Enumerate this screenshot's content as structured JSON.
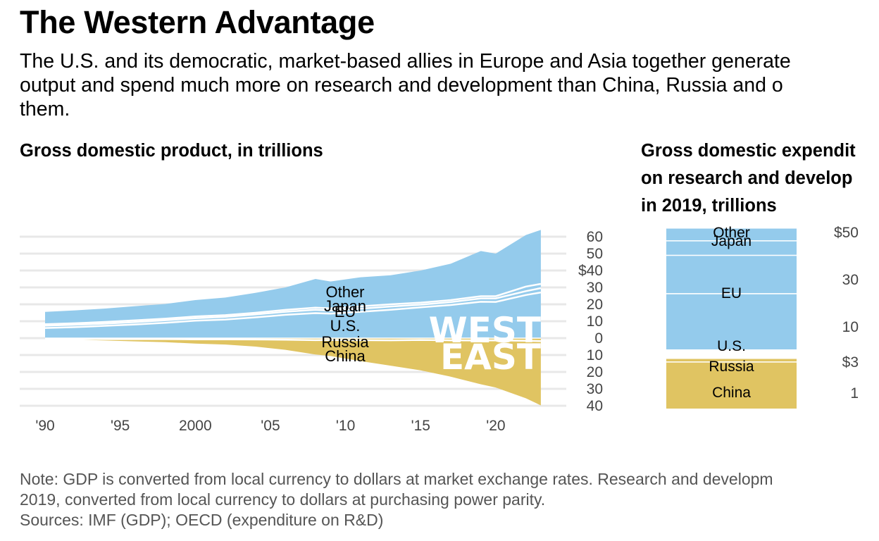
{
  "header": {
    "title": "The Western Advantage",
    "subtitle": "The U.S. and its democratic, market-based allies in Europe and Asia together generate\noutput and spend much more on research and development than China, Russia and o\nthem."
  },
  "colors": {
    "west": "#94cbec",
    "east": "#e0c462",
    "grid": "#e8e8e8",
    "divider": "#ffffff"
  },
  "footer": {
    "note": "Note: GDP is converted from local currency to dollars at market exchange rates. Research and developm\n2019, converted from local currency to dollars at purchasing power parity.\nSources: IMF (GDP); OECD (expenditure on R&D)"
  },
  "chart_data": [
    {
      "type": "area",
      "title": "Gross domestic product, in trillions",
      "xlabel": "",
      "ylabel": "",
      "x": [
        1990,
        1992,
        1994,
        1996,
        1998,
        2000,
        2002,
        2004,
        2006,
        2008,
        2009,
        2011,
        2013,
        2015,
        2017,
        2019,
        2020,
        2022,
        2023
      ],
      "xticks": [
        {
          "value": 1990,
          "label": "'90"
        },
        {
          "value": 1995,
          "label": "'95"
        },
        {
          "value": 2000,
          "label": "2000"
        },
        {
          "value": 2005,
          "label": "'05"
        },
        {
          "value": 2010,
          "label": "'10"
        },
        {
          "value": 2015,
          "label": "'15"
        },
        {
          "value": 2020,
          "label": "'20"
        }
      ],
      "yticks": [
        {
          "value": 60,
          "label": "60"
        },
        {
          "value": 50,
          "label": "50"
        },
        {
          "value": 40,
          "label": "$40"
        },
        {
          "value": 30,
          "label": "30"
        },
        {
          "value": 20,
          "label": "20"
        },
        {
          "value": 10,
          "label": "10"
        },
        {
          "value": 0,
          "label": "0"
        },
        {
          "value": -10,
          "label": "10"
        },
        {
          "value": -20,
          "label": "20"
        },
        {
          "value": -30,
          "label": "30"
        },
        {
          "value": -40,
          "label": "40"
        }
      ],
      "ylim": [
        -40,
        65
      ],
      "grid": true,
      "groups": [
        {
          "name": "WEST",
          "direction": "up",
          "color": "#94cbec",
          "series": [
            {
              "name": "U.S.",
              "values": [
                6.0,
                6.5,
                7.3,
                8.1,
                9.1,
                10.3,
                11.0,
                12.3,
                13.8,
                14.8,
                14.5,
                15.6,
                16.8,
                18.2,
                19.6,
                21.5,
                21.4,
                25.5,
                27.0
              ]
            },
            {
              "name": "EU",
              "values": [
                1.4,
                1.4,
                1.3,
                1.4,
                1.5,
                1.5,
                1.6,
                1.7,
                1.8,
                2.0,
                1.8,
                1.8,
                1.9,
                1.6,
                1.7,
                2.0,
                2.1,
                2.3,
                2.6
              ]
            },
            {
              "name": "Japan",
              "values": [
                0.8,
                0.9,
                1.0,
                1.0,
                0.9,
                1.0,
                1.0,
                1.0,
                1.1,
                1.2,
                1.3,
                1.4,
                1.3,
                1.2,
                1.2,
                1.3,
                1.3,
                2.7,
                2.5
              ]
            },
            {
              "name": "Other",
              "values": [
                7.3,
                7.6,
                7.9,
                8.4,
                8.7,
                9.7,
                10.4,
                11.8,
                13.3,
                17.0,
                15.9,
                17.2,
                17.2,
                19.0,
                21.5,
                26.7,
                25.2,
                30.5,
                31.9
              ]
            }
          ]
        },
        {
          "name": "EAST",
          "direction": "down",
          "color": "#e0c462",
          "series": [
            {
              "name": "Russia",
              "values": [
                0.5,
                0.5,
                0.6,
                0.6,
                0.6,
                0.7,
                0.7,
                0.8,
                0.9,
                1.2,
                1.1,
                1.2,
                1.3,
                1.1,
                1.3,
                1.4,
                1.3,
                1.6,
                1.8
              ]
            },
            {
              "name": "China",
              "values": [
                0.0,
                0.4,
                0.8,
                1.3,
                1.8,
                2.5,
                3.1,
                4.2,
                6.0,
                8.5,
                9.5,
                12.4,
                15.0,
                18.0,
                21.5,
                25.9,
                27.9,
                34.0,
                38.0
              ]
            }
          ]
        }
      ],
      "series_labels": [
        "Other",
        "Japan",
        "EU",
        "U.S.",
        "Russia",
        "China"
      ],
      "annotations": [
        "WEST",
        "EAST"
      ]
    },
    {
      "type": "bar",
      "title": "Gross domestic expendit\non research and develop\nin 2019, trillions",
      "stacked": true,
      "groups": [
        {
          "name": "West",
          "color": "#94cbec",
          "segments": [
            {
              "name": "U.S.",
              "value": 0.66
            },
            {
              "name": "EU",
              "value": 0.45
            },
            {
              "name": "Japan",
              "value": 0.17
            },
            {
              "name": "Other",
              "value": 0.15
            }
          ]
        },
        {
          "name": "East",
          "color": "#e0c462",
          "segments": [
            {
              "name": "China",
              "value": 0.52
            },
            {
              "name": "Russia",
              "value": 0.04
            }
          ]
        }
      ],
      "ticks_west": [
        "$50",
        "30",
        "10"
      ],
      "ticks_east": [
        "$3",
        "1"
      ]
    }
  ]
}
